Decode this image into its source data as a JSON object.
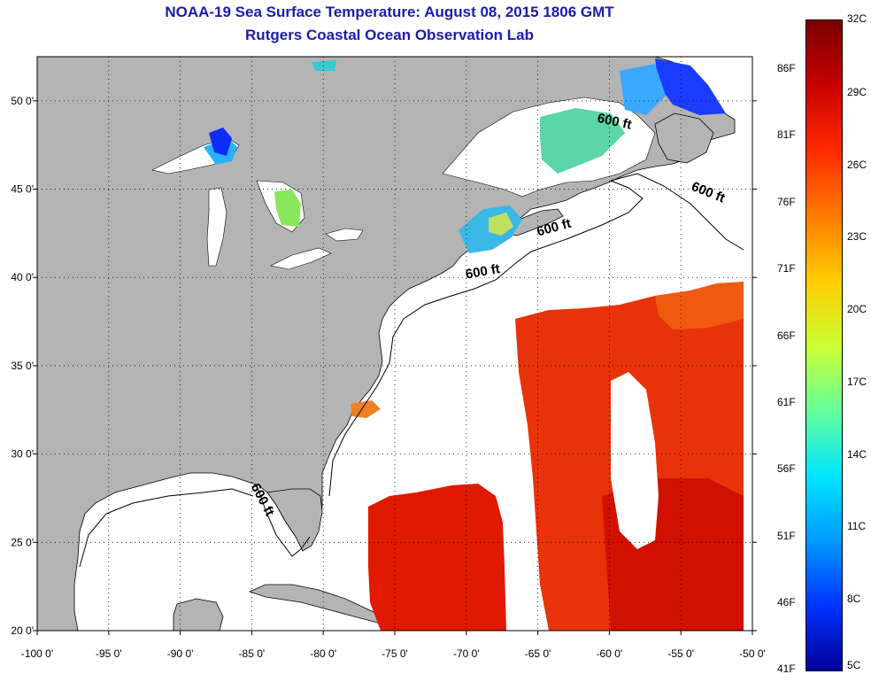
{
  "title": "NOAA-19 Sea Surface Temperature:  August 08, 2015 1806 GMT",
  "subtitle": "Rutgers Coastal Ocean Observation Lab",
  "map": {
    "lon_range": [
      -100,
      -50
    ],
    "lat_range": [
      20,
      52.5
    ],
    "lon_ticks": [
      {
        "v": -100,
        "label": "-100 0'"
      },
      {
        "v": -95,
        "label": "-95 0'"
      },
      {
        "v": -90,
        "label": "-90 0'"
      },
      {
        "v": -85,
        "label": "-85 0'"
      },
      {
        "v": -80,
        "label": "-80 0'"
      },
      {
        "v": -75,
        "label": "-75 0'"
      },
      {
        "v": -70,
        "label": "-70 0'"
      },
      {
        "v": -65,
        "label": "-65 0'"
      },
      {
        "v": -60,
        "label": "-60 0'"
      },
      {
        "v": -55,
        "label": "-55 0'"
      },
      {
        "v": -50,
        "label": "-50 0'"
      }
    ],
    "lat_ticks": [
      {
        "v": 20,
        "label": "20 0'"
      },
      {
        "v": 25,
        "label": "25 0'"
      },
      {
        "v": 30,
        "label": "30 0'"
      },
      {
        "v": 35,
        "label": "35 0'"
      },
      {
        "v": 40,
        "label": "40 0'"
      },
      {
        "v": 45,
        "label": "45 0'"
      },
      {
        "v": 50,
        "label": "50 0'"
      }
    ],
    "contour_labels": [
      {
        "text": "600 ft",
        "lon": -84.5,
        "lat": 27.3,
        "rot": 62
      },
      {
        "text": "600 ft",
        "lon": -68.8,
        "lat": 40.1,
        "rot": -10
      },
      {
        "text": "600 ft",
        "lon": -63.8,
        "lat": 42.6,
        "rot": -15
      },
      {
        "text": "600 ft",
        "lon": -59.7,
        "lat": 48.6,
        "rot": 12
      },
      {
        "text": "600 ft",
        "lon": -53.2,
        "lat": 44.6,
        "rot": 22
      }
    ],
    "land_color": "#b4b4b4",
    "ocean_color": "#ffffff"
  },
  "colorbar": {
    "celsius": [
      "32C",
      "29C",
      "26C",
      "23C",
      "20C",
      "17C",
      "14C",
      "11C",
      "8C",
      "5C"
    ],
    "fahrenheit": [
      "86F",
      "81F",
      "76F",
      "71F",
      "66F",
      "61F",
      "56F",
      "51F",
      "46F",
      "41F"
    ],
    "colors": [
      "#7a0000",
      "#c80000",
      "#ff2a00",
      "#ff7a00",
      "#ffcc00",
      "#ccff33",
      "#66ff99",
      "#00e6ff",
      "#0099ff",
      "#0033ff",
      "#000099"
    ]
  }
}
